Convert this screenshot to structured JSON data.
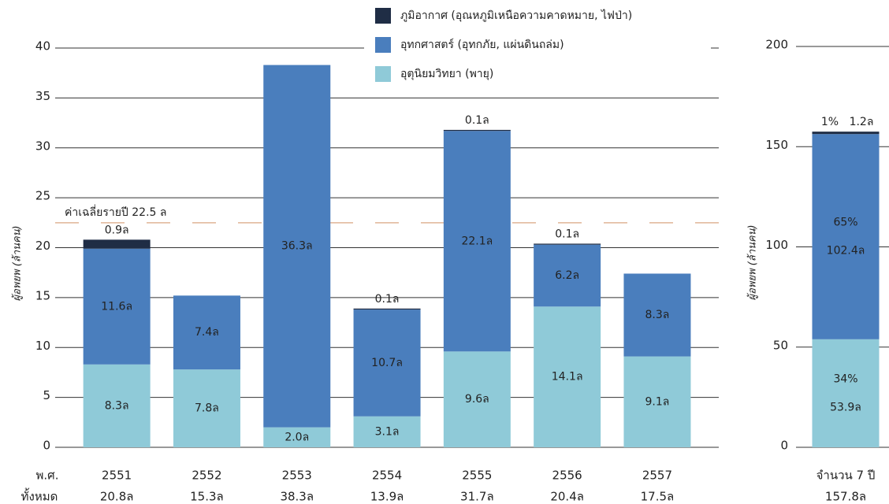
{
  "chart_data": [
    {
      "type": "stacked_bar",
      "y_label": "ผู้อพยพ (ล้านคน)",
      "categories": [
        "2551",
        "2552",
        "2553",
        "2554",
        "2555",
        "2556",
        "2557"
      ],
      "row_labels": [
        "พ.ศ.",
        "ทั้งหมด"
      ],
      "totals": [
        20.8,
        15.3,
        38.3,
        13.9,
        31.7,
        20.4,
        17.5
      ],
      "total_labels": [
        "20.8ล",
        "15.3ล",
        "38.3ล",
        "13.9ล",
        "31.7ล",
        "20.4ล",
        "17.5ล"
      ],
      "series": [
        {
          "name": "อุตุนิยมวิทยา (พายุ)",
          "color": "#8fcad8",
          "values": [
            8.3,
            7.8,
            2.0,
            3.1,
            9.6,
            14.1,
            9.1
          ],
          "value_labels": [
            "8.3ล",
            "7.8ล",
            "2.0ล",
            "3.1ล",
            "9.6ล",
            "14.1ล",
            "9.1ล"
          ]
        },
        {
          "name": "อุทกศาสตร์ (อุทกภัย, แผ่นดินถล่ม)",
          "color": "#4a7ebd",
          "values": [
            11.6,
            7.4,
            36.3,
            10.7,
            22.1,
            6.2,
            8.3
          ],
          "value_labels": [
            "11.6ล",
            "7.4ล",
            "36.3ล",
            "10.7ล",
            "22.1ล",
            "6.2ล",
            "8.3ล"
          ]
        },
        {
          "name": "ภูมิอากาศ (อุณหภูมิเหนือความคาดหมาย, ไฟป่า)",
          "color": "#1f2d45",
          "values": [
            0.9,
            null,
            null,
            0.1,
            0.1,
            0.1,
            null
          ],
          "value_labels": [
            "0.9ล",
            null,
            null,
            "0.1ล",
            "0.1ล",
            "0.1ล",
            null
          ]
        }
      ],
      "average": {
        "value": 22.5,
        "label": "ค่าเฉลี่ยรายปี 22.5 ล",
        "color": "#e0b496"
      },
      "ylim": [
        0,
        40
      ],
      "yticks": [
        0,
        5,
        10,
        15,
        20,
        25,
        30,
        35,
        40
      ],
      "grid": true
    },
    {
      "type": "stacked_bar",
      "y_label": "ผู้อพยพ (ล้านคน)",
      "categories": [
        "จำนวน 7 ปี"
      ],
      "totals": [
        157.8
      ],
      "total_labels": [
        "157.8ล"
      ],
      "series": [
        {
          "name": "อุตุนิยมวิทยา (พายุ)",
          "color": "#8fcad8",
          "values": [
            53.9
          ],
          "value_labels": [
            "53.9ล"
          ],
          "percents": [
            34
          ],
          "percent_labels": [
            "34%"
          ]
        },
        {
          "name": "อุทกศาสตร์ (อุทกภัย, แผ่นดินถล่ม)",
          "color": "#4a7ebd",
          "values": [
            102.4
          ],
          "value_labels": [
            "102.4ล"
          ],
          "percents": [
            65
          ],
          "percent_labels": [
            "65%"
          ]
        },
        {
          "name": "ภูมิอากาศ (อุณหภูมิเหนือความคาดหมาย, ไฟป่า)",
          "color": "#1f2d45",
          "values": [
            1.2
          ],
          "value_labels": [
            "1.2ล"
          ],
          "percents": [
            1
          ],
          "percent_labels": [
            "1%"
          ]
        }
      ],
      "ylim": [
        0,
        200
      ],
      "yticks": [
        0,
        50,
        100,
        150,
        200
      ],
      "grid": true
    }
  ]
}
